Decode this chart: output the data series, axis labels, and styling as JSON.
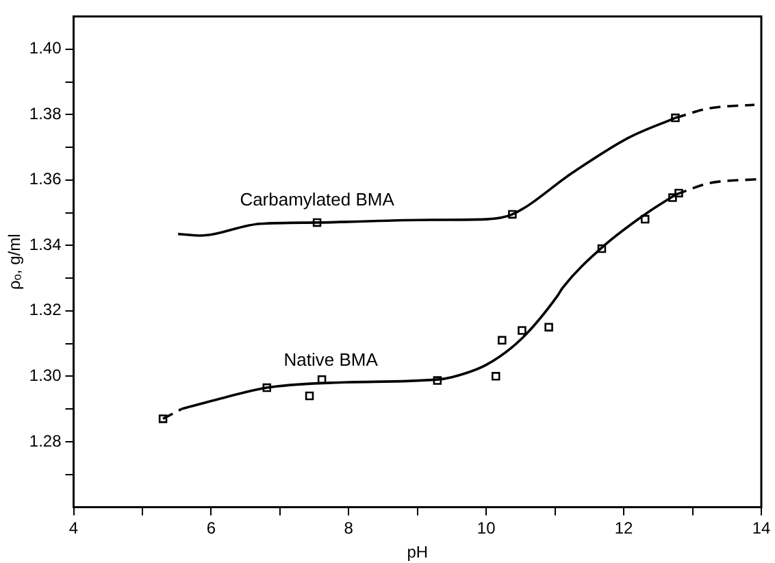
{
  "chart_data": {
    "type": "line",
    "xlabel": "pH",
    "ylabel": "ρₒ, g/ml",
    "xlim": [
      4,
      14
    ],
    "ylim": [
      1.26,
      1.41
    ],
    "xticks": [
      4,
      {
        "value": 5,
        "label": null
      },
      6,
      {
        "value": 7,
        "label": null
      },
      8,
      {
        "value": 9,
        "label": null
      },
      10,
      {
        "value": 11,
        "label": null
      },
      12,
      {
        "value": 13,
        "label": null
      },
      14
    ],
    "yticks": [
      {
        "value": 1.27,
        "label": null
      },
      1.28,
      {
        "value": 1.29,
        "label": null
      },
      "1.30",
      {
        "value": 1.31,
        "label": null
      },
      1.32,
      {
        "value": 1.33,
        "label": null
      },
      1.34,
      {
        "value": 1.35,
        "label": null
      },
      1.36,
      {
        "value": 1.37,
        "label": null
      },
      1.38,
      {
        "value": 1.39,
        "label": null
      },
      "1.40"
    ],
    "grid": false,
    "legend": false,
    "series": [
      {
        "type": "line",
        "name": "Carbamylated BMA",
        "color": "#000000",
        "marker": "none",
        "line_style": "solid",
        "x": [
          5.52,
          5.83,
          6.71,
          7.54,
          9.2,
          10.0,
          10.38,
          11.26,
          12.06,
          12.75
        ],
        "values": [
          1.3435,
          1.343,
          1.3466,
          1.347,
          1.3478,
          1.348,
          1.3495,
          1.3623,
          1.3728,
          1.379
        ]
      },
      {
        "type": "line",
        "color": "#000000",
        "marker": "none",
        "line_style": "dashed",
        "x": [
          12.75,
          13.24,
          13.9
        ],
        "values": [
          1.379,
          1.3819,
          1.383
        ]
      },
      {
        "type": "scatter",
        "color": "#000000",
        "marker": "square",
        "x": [
          7.54,
          10.38,
          12.75
        ],
        "values": [
          1.347,
          1.3495,
          1.379
        ]
      },
      {
        "type": "line",
        "color": "#000000",
        "marker": "none",
        "line_style": "dashed",
        "x": [
          5.3,
          5.57
        ],
        "values": [
          1.287,
          1.29
        ]
      },
      {
        "type": "line",
        "name": "Native BMA",
        "color": "#000000",
        "marker": "none",
        "line_style": "solid",
        "x": [
          5.57,
          6.05,
          6.81,
          7.74,
          9.29,
          9.5,
          10.01,
          10.52,
          11.04,
          11.11,
          11.68,
          12.31,
          12.76
        ],
        "values": [
          1.29,
          1.2927,
          1.2965,
          1.298,
          1.299,
          1.2997,
          1.3036,
          1.3116,
          1.3247,
          1.327,
          1.3393,
          1.3495,
          1.3556
        ]
      },
      {
        "type": "line",
        "color": "#000000",
        "marker": "none",
        "line_style": "dashed",
        "x": [
          12.76,
          13.24,
          13.97
        ],
        "values": [
          1.3556,
          1.359,
          1.3603
        ]
      },
      {
        "type": "scatter",
        "color": "#000000",
        "marker": "square",
        "x": [
          5.3,
          6.81,
          7.43,
          7.61,
          9.29,
          10.14,
          10.23,
          10.52,
          10.91,
          11.68,
          12.31,
          12.71,
          12.8
        ],
        "values": [
          1.287,
          1.2965,
          1.294,
          1.299,
          1.2987,
          1.3,
          1.311,
          1.314,
          1.315,
          1.339,
          1.348,
          1.3546,
          1.356
        ]
      }
    ]
  }
}
